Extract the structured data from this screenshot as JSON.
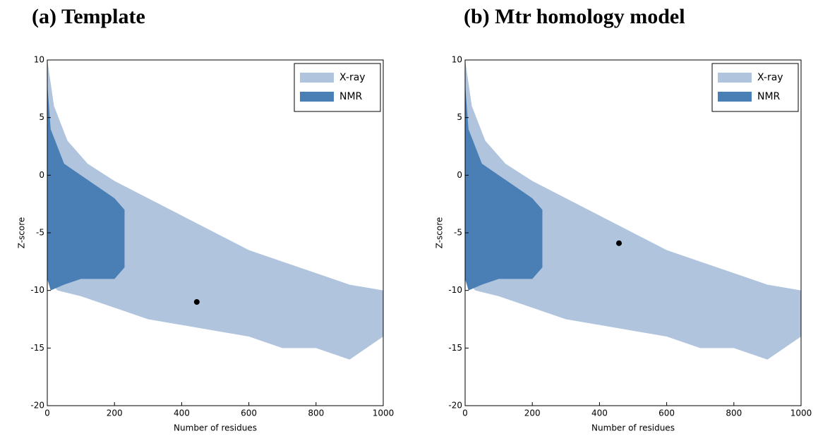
{
  "chart_data": [
    {
      "type": "scatter",
      "title": "(a) Template",
      "xlabel": "Number of residues",
      "ylabel": "Z-score",
      "xlim": [
        0,
        1000
      ],
      "ylim": [
        -20,
        10
      ],
      "xticks": [
        0,
        200,
        400,
        600,
        800,
        1000
      ],
      "yticks": [
        -20,
        -15,
        -10,
        -5,
        0,
        5,
        10
      ],
      "legend": "upper right",
      "series": [
        {
          "name": "X-ray",
          "color": "#b0c4de",
          "x": [
            0,
            20,
            60,
            120,
            200,
            300,
            400,
            500,
            600,
            700,
            800,
            900,
            1000,
            1000,
            900,
            800,
            700,
            600,
            500,
            400,
            300,
            200,
            100,
            30,
            0
          ],
          "y": [
            10,
            6,
            3,
            1,
            -0.5,
            -2,
            -3.5,
            -5,
            -6.5,
            -7.5,
            -8.5,
            -9.5,
            -10,
            -14,
            -16,
            -15,
            -15,
            -14,
            -13.5,
            -13,
            -12.5,
            -11.5,
            -10.5,
            -10,
            -9
          ]
        },
        {
          "name": "NMR",
          "color": "#4a7fb5",
          "x": [
            0,
            10,
            50,
            100,
            150,
            200,
            230,
            230,
            200,
            150,
            100,
            50,
            10,
            0
          ],
          "y": [
            8,
            4,
            1,
            0,
            -1,
            -2,
            -3,
            -8,
            -9,
            -9,
            -9,
            -9.5,
            -10,
            -9
          ]
        }
      ],
      "point": {
        "x": 445,
        "y": -11,
        "color": "#000000"
      }
    },
    {
      "type": "scatter",
      "title": "(b) Mtr homology model",
      "xlabel": "Number of residues",
      "ylabel": "Z-score",
      "xlim": [
        0,
        1000
      ],
      "ylim": [
        -20,
        10
      ],
      "xticks": [
        0,
        200,
        400,
        600,
        800,
        1000
      ],
      "yticks": [
        -20,
        -15,
        -10,
        -5,
        0,
        5,
        10
      ],
      "legend": "upper right",
      "series": [
        {
          "name": "X-ray",
          "color": "#b0c4de",
          "x": [
            0,
            20,
            60,
            120,
            200,
            300,
            400,
            500,
            600,
            700,
            800,
            900,
            1000,
            1000,
            900,
            800,
            700,
            600,
            500,
            400,
            300,
            200,
            100,
            30,
            0
          ],
          "y": [
            10,
            6,
            3,
            1,
            -0.5,
            -2,
            -3.5,
            -5,
            -6.5,
            -7.5,
            -8.5,
            -9.5,
            -10,
            -14,
            -16,
            -15,
            -15,
            -14,
            -13.5,
            -13,
            -12.5,
            -11.5,
            -10.5,
            -10,
            -9
          ]
        },
        {
          "name": "NMR",
          "color": "#4a7fb5",
          "x": [
            0,
            10,
            50,
            100,
            150,
            200,
            230,
            230,
            200,
            150,
            100,
            50,
            10,
            0
          ],
          "y": [
            8,
            4,
            1,
            0,
            -1,
            -2,
            -3,
            -8,
            -9,
            -9,
            -9,
            -9.5,
            -10,
            -9
          ]
        }
      ],
      "point": {
        "x": 458,
        "y": -5.9,
        "color": "#000000"
      }
    }
  ]
}
